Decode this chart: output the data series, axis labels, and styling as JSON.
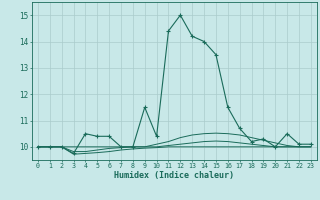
{
  "xlabel": "Humidex (Indice chaleur)",
  "background_color": "#c8e8e8",
  "grid_color": "#aacccc",
  "line_color": "#1a6b5a",
  "xlim": [
    -0.5,
    23.5
  ],
  "ylim": [
    9.5,
    15.5
  ],
  "x": [
    0,
    1,
    2,
    3,
    4,
    5,
    6,
    7,
    8,
    9,
    10,
    11,
    12,
    13,
    14,
    15,
    16,
    17,
    18,
    19,
    20,
    21,
    22,
    23
  ],
  "main_y": [
    10.0,
    10.0,
    10.0,
    9.75,
    10.5,
    10.4,
    10.4,
    10.0,
    10.0,
    11.5,
    10.4,
    14.4,
    15.0,
    14.2,
    14.0,
    13.5,
    11.5,
    10.7,
    10.2,
    10.3,
    10.0,
    10.5,
    10.1,
    10.1
  ],
  "line2_y": [
    10.0,
    10.0,
    10.0,
    10.0,
    10.0,
    10.0,
    10.0,
    10.0,
    10.0,
    10.0,
    10.1,
    10.2,
    10.35,
    10.45,
    10.5,
    10.52,
    10.5,
    10.45,
    10.35,
    10.25,
    10.15,
    10.05,
    10.0,
    10.0
  ],
  "line3_y": [
    10.0,
    10.0,
    10.0,
    9.82,
    9.82,
    9.88,
    9.94,
    9.97,
    10.0,
    10.0,
    10.0,
    10.05,
    10.1,
    10.15,
    10.2,
    10.22,
    10.2,
    10.15,
    10.1,
    10.05,
    10.0,
    10.0,
    10.0,
    10.0
  ],
  "line4_y": [
    10.0,
    10.0,
    10.0,
    9.72,
    9.75,
    9.78,
    9.82,
    9.88,
    9.92,
    9.95,
    9.97,
    10.0,
    10.0,
    10.0,
    10.0,
    10.0,
    10.0,
    10.0,
    10.0,
    10.0,
    10.0,
    10.0,
    10.0,
    10.0
  ],
  "yticks": [
    10,
    11,
    12,
    13,
    14,
    15
  ],
  "xticks": [
    0,
    1,
    2,
    3,
    4,
    5,
    6,
    7,
    8,
    9,
    10,
    11,
    12,
    13,
    14,
    15,
    16,
    17,
    18,
    19,
    20,
    21,
    22,
    23
  ]
}
